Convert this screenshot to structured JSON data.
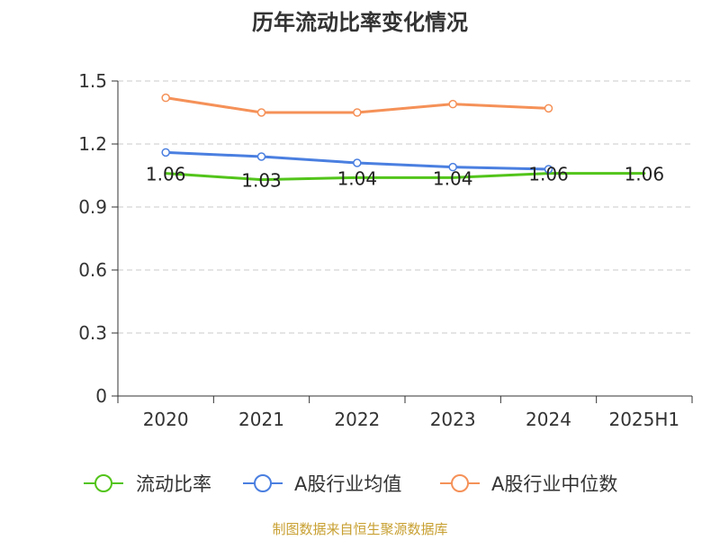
{
  "chart_data": {
    "type": "line",
    "title": "历年流动比率变化情况",
    "categories": [
      "2020",
      "2021",
      "2022",
      "2023",
      "2024",
      "2025H1"
    ],
    "ylim": [
      0,
      1.5
    ],
    "yticks": [
      0,
      0.3,
      0.6,
      0.9,
      1.2,
      1.5
    ],
    "ytick_labels": [
      "0",
      "0.3",
      "0.6",
      "0.9",
      "1.2",
      "1.5"
    ],
    "xlabel": "",
    "ylabel": "",
    "grid": "horizontal dashed",
    "legend_position": "bottom",
    "series": [
      {
        "name": "流动比率",
        "color": "#52c41a",
        "values": [
          1.06,
          1.03,
          1.04,
          1.04,
          1.06,
          1.06
        ],
        "labels": [
          "1.06",
          "1.03",
          "1.04",
          "1.04",
          "1.06",
          "1.06"
        ],
        "show_markers": false
      },
      {
        "name": "A股行业均值",
        "color": "#4a7fe0",
        "values": [
          1.16,
          1.14,
          1.11,
          1.09,
          1.08,
          null
        ],
        "show_markers": true
      },
      {
        "name": "A股行业中位数",
        "color": "#f59158",
        "values": [
          1.42,
          1.35,
          1.35,
          1.39,
          1.37,
          null
        ],
        "show_markers": true
      }
    ]
  },
  "source": "制图数据来自恒生聚源数据库"
}
